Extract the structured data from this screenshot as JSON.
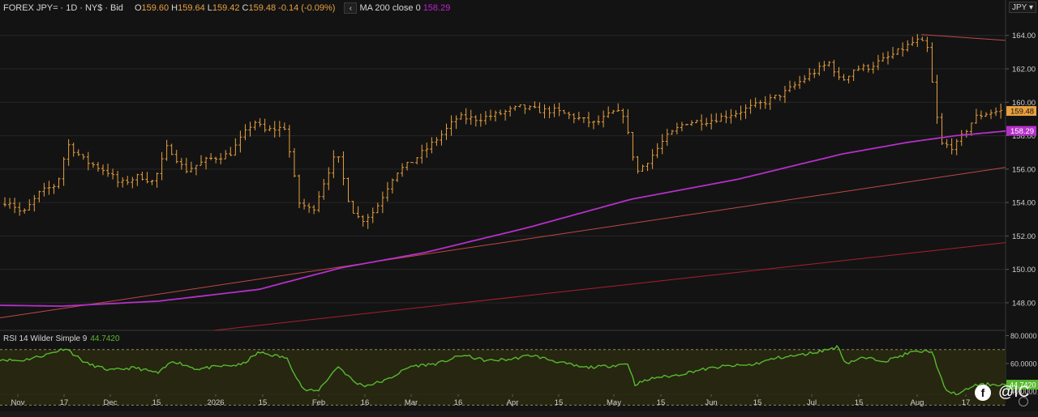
{
  "legend": {
    "symbol": "FOREX JPY=",
    "interval": "1D",
    "exchange": "NY$",
    "side": "Bid",
    "o_label": "O",
    "o_value": "159.60",
    "h_label": "H",
    "h_value": "159.64",
    "l_label": "L",
    "l_value": "159.42",
    "c_label": "C",
    "c_value": "159.48",
    "change": "-0.14 (-0.09%)",
    "collapse_glyph": "‹",
    "ma_label": "MA 200 close 0",
    "ma_value": "158.29"
  },
  "currency": "JPY",
  "currency_chevron": "▾",
  "rsi_legend": {
    "label": "RSI 14 Wilder Simple 9",
    "value": "44.7420"
  },
  "brand": {
    "logo_glyph": "f",
    "handle": "@IC"
  },
  "colors": {
    "price_bar": "#e8a040",
    "ma": "#b430c8",
    "rsi": "#58b830",
    "trend_upper": "#c04848",
    "trend_lower": "#a82030"
  },
  "chart_data": {
    "type": "ohlc",
    "price_axis": {
      "ticks": [
        "164.00",
        "162.00",
        "160.00",
        "158.00",
        "156.00",
        "154.00",
        "152.00",
        "150.00",
        "148.00"
      ],
      "ylim": [
        146.35,
        165.15
      ],
      "last_price": "159.48",
      "ma_last": "158.29"
    },
    "x_axis": {
      "labels": [
        "Nov",
        "17",
        "Dec",
        "15",
        "2026",
        "15",
        "Feb",
        "16",
        "Mar",
        "16",
        "Apr",
        "15",
        "May",
        "15",
        "Jun",
        "15",
        "Jul",
        "15",
        "Aug",
        "17"
      ]
    },
    "price_series": {
      "name": "FOREX JPY=",
      "anchors": [
        [
          "2025-10-30",
          153.9
        ],
        [
          "2025-11-03",
          154.1
        ],
        [
          "2025-11-07",
          153.3
        ],
        [
          "2025-11-12",
          154.6
        ],
        [
          "2025-11-17",
          155.1
        ],
        [
          "2025-11-20",
          157.5
        ],
        [
          "2025-11-25",
          156.5
        ],
        [
          "2025-12-02",
          155.8
        ],
        [
          "2025-12-05",
          155.1
        ],
        [
          "2025-12-11",
          155.6
        ],
        [
          "2025-12-15",
          155.2
        ],
        [
          "2025-12-19",
          157.4
        ],
        [
          "2025-12-24",
          155.9
        ],
        [
          "2025-12-31",
          156.6
        ],
        [
          "2026-01-06",
          156.9
        ],
        [
          "2026-01-13",
          158.9
        ],
        [
          "2026-01-16",
          158.3
        ],
        [
          "2026-01-22",
          158.5
        ],
        [
          "2026-01-26",
          154.0
        ],
        [
          "2026-01-30",
          153.5
        ],
        [
          "2026-02-03",
          155.6
        ],
        [
          "2026-02-06",
          157.0
        ],
        [
          "2026-02-10",
          153.7
        ],
        [
          "2026-02-13",
          152.9
        ],
        [
          "2026-02-17",
          153.5
        ],
        [
          "2026-02-23",
          155.8
        ],
        [
          "2026-02-27",
          156.3
        ],
        [
          "2026-03-04",
          157.2
        ],
        [
          "2026-03-09",
          158.2
        ],
        [
          "2026-03-13",
          159.1
        ],
        [
          "2026-03-19",
          159.0
        ],
        [
          "2026-03-25",
          159.3
        ],
        [
          "2026-03-31",
          159.7
        ],
        [
          "2026-04-06",
          159.5
        ],
        [
          "2026-04-10",
          159.5
        ],
        [
          "2026-04-16",
          159.1
        ],
        [
          "2026-04-22",
          158.7
        ],
        [
          "2026-04-27",
          159.4
        ],
        [
          "2026-04-30",
          159.3
        ],
        [
          "2026-05-04",
          155.8
        ],
        [
          "2026-05-08",
          156.7
        ],
        [
          "2026-05-12",
          157.8
        ],
        [
          "2026-05-18",
          158.8
        ],
        [
          "2026-05-25",
          158.9
        ],
        [
          "2026-06-02",
          159.4
        ],
        [
          "2026-06-10",
          160.0
        ],
        [
          "2026-06-16",
          160.6
        ],
        [
          "2026-06-22",
          161.5
        ],
        [
          "2026-06-29",
          162.4
        ],
        [
          "2026-07-02",
          161.2
        ],
        [
          "2026-07-06",
          162.0
        ],
        [
          "2026-07-10",
          162.1
        ],
        [
          "2026-07-16",
          162.7
        ],
        [
          "2026-07-20",
          163.2
        ],
        [
          "2026-07-24",
          163.7
        ],
        [
          "2026-07-27",
          163.4
        ],
        [
          "2026-07-29",
          160.5
        ],
        [
          "2026-07-31",
          157.5
        ],
        [
          "2026-08-04",
          157.3
        ],
        [
          "2026-08-07",
          158.2
        ],
        [
          "2026-08-10",
          159.1
        ],
        [
          "2026-08-14",
          159.4
        ],
        [
          "2026-08-18",
          159.48
        ]
      ]
    },
    "ma_series": {
      "name": "MA 200 close 0",
      "anchors": [
        [
          "2025-10-30",
          147.85
        ],
        [
          "2025-11-17",
          147.8
        ],
        [
          "2025-12-15",
          148.1
        ],
        [
          "2026-01-13",
          148.8
        ],
        [
          "2026-02-06",
          150.1
        ],
        [
          "2026-03-02",
          151.0
        ],
        [
          "2026-04-01",
          152.5
        ],
        [
          "2026-05-01",
          154.2
        ],
        [
          "2026-06-01",
          155.4
        ],
        [
          "2026-07-01",
          156.9
        ],
        [
          "2026-07-20",
          157.6
        ],
        [
          "2026-08-03",
          158.0
        ],
        [
          "2026-08-18",
          158.29
        ]
      ]
    },
    "trend_lines": [
      {
        "start": [
          "2026-07-24",
          164.05
        ],
        "end": [
          "2026-08-31",
          163.7
        ]
      },
      {
        "start": [
          "2025-10-30",
          147.1
        ],
        "end": [
          "2026-08-31",
          156.1
        ]
      },
      {
        "start": [
          "2025-12-31",
          146.35
        ],
        "end": [
          "2026-08-31",
          151.6
        ]
      }
    ],
    "rsi": {
      "name": "RSI 14 Wilder Simple 9",
      "ticks": [
        "80.0000",
        "60.0000",
        "40.0000"
      ],
      "ylim": [
        37.8,
        83.8
      ],
      "band": [
        70,
        30
      ],
      "last_value": "44.7420",
      "anchors": [
        [
          "2025-10-30",
          63
        ],
        [
          "2025-11-05",
          62
        ],
        [
          "2025-11-12",
          66
        ],
        [
          "2025-11-18",
          71
        ],
        [
          "2025-11-24",
          60
        ],
        [
          "2025-12-01",
          55
        ],
        [
          "2025-12-08",
          57
        ],
        [
          "2025-12-15",
          53
        ],
        [
          "2025-12-19",
          62
        ],
        [
          "2025-12-26",
          56
        ],
        [
          "2026-01-02",
          58
        ],
        [
          "2026-01-08",
          59
        ],
        [
          "2026-01-13",
          68
        ],
        [
          "2026-01-21",
          64
        ],
        [
          "2026-01-26",
          41
        ],
        [
          "2026-01-30",
          40
        ],
        [
          "2026-02-05",
          58
        ],
        [
          "2026-02-10",
          46
        ],
        [
          "2026-02-13",
          44
        ],
        [
          "2026-02-19",
          48
        ],
        [
          "2026-02-26",
          58
        ],
        [
          "2026-03-06",
          60
        ],
        [
          "2026-03-13",
          66
        ],
        [
          "2026-03-20",
          62
        ],
        [
          "2026-03-27",
          63
        ],
        [
          "2026-04-02",
          66
        ],
        [
          "2026-04-10",
          61
        ],
        [
          "2026-04-17",
          57
        ],
        [
          "2026-04-24",
          58
        ],
        [
          "2026-04-30",
          60
        ],
        [
          "2026-05-02",
          45
        ],
        [
          "2026-05-08",
          50
        ],
        [
          "2026-05-13",
          51
        ],
        [
          "2026-05-20",
          55
        ],
        [
          "2026-05-28",
          58
        ],
        [
          "2026-06-05",
          59
        ],
        [
          "2026-06-12",
          64
        ],
        [
          "2026-06-19",
          66
        ],
        [
          "2026-06-25",
          69
        ],
        [
          "2026-06-30",
          72
        ],
        [
          "2026-07-02",
          60
        ],
        [
          "2026-07-07",
          64
        ],
        [
          "2026-07-14",
          62
        ],
        [
          "2026-07-21",
          68
        ],
        [
          "2026-07-27",
          69
        ],
        [
          "2026-07-29",
          55
        ],
        [
          "2026-07-31",
          40
        ],
        [
          "2026-08-04",
          38
        ],
        [
          "2026-08-08",
          44
        ],
        [
          "2026-08-12",
          45
        ],
        [
          "2026-08-18",
          44.742
        ]
      ]
    }
  }
}
